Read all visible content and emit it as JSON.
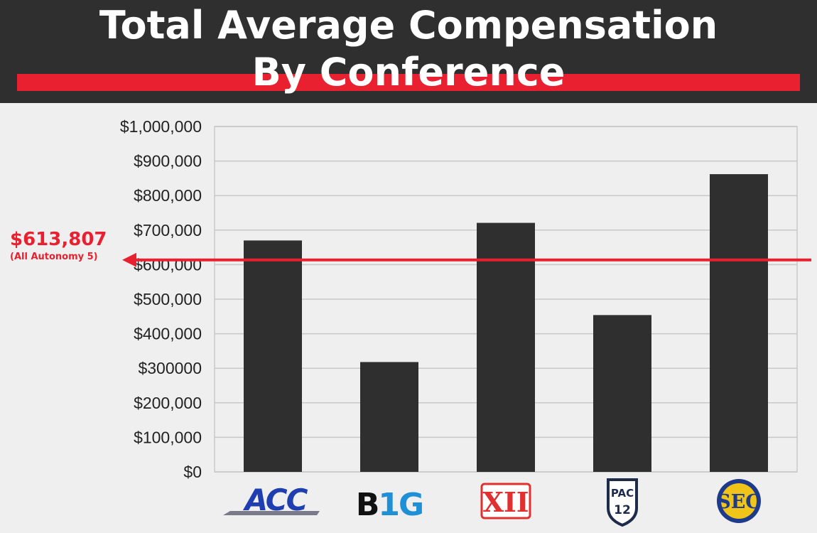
{
  "header": {
    "title_line_1": "Total Average Compensation",
    "title_line_2": "By Conference"
  },
  "colors": {
    "header_bg": "#2f2f2f",
    "accent_red": "#e8202f",
    "bar": "#2f2f2f",
    "grid": "#c8c8c8",
    "plot_bg": "#efefef"
  },
  "reference": {
    "value_label": "$613,807",
    "sub_label": "(All Autonomy 5)",
    "value": 613807
  },
  "chart_data": {
    "type": "bar",
    "title": "Total Average Compensation By Conference",
    "categories": [
      "ACC",
      "B1G",
      "XII",
      "PAC 12",
      "SEC"
    ],
    "category_icons": [
      "acc-logo",
      "big-ten-logo",
      "big-12-logo",
      "pac-12-logo",
      "sec-logo"
    ],
    "values": [
      670000,
      318000,
      721000,
      454000,
      862000
    ],
    "ylim": [
      0,
      1000000
    ],
    "yticks": [
      0,
      100000,
      200000,
      300000,
      400000,
      500000,
      600000,
      700000,
      800000,
      900000,
      1000000
    ],
    "ytick_labels": [
      "$0",
      "$100,000",
      "$200,000",
      "$300000",
      "$400,000",
      "$500,000",
      "$600,000",
      "$700,000",
      "$800,000",
      "$900,000",
      "$1,000,000"
    ],
    "grid": true,
    "reference_line": 613807
  }
}
